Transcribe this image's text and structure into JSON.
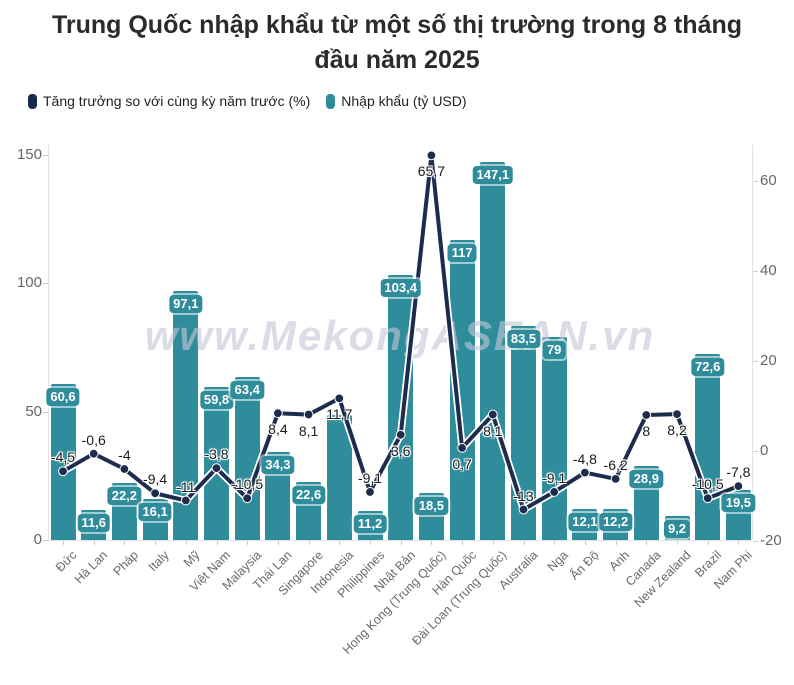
{
  "title": "Trung Quốc nhập khẩu từ một số thị trường trong 8 tháng đầu năm 2025",
  "legend": [
    {
      "label": "Tăng trưởng so với cùng kỳ năm trước (%)",
      "color": "#16294e"
    },
    {
      "label": "Nhập khẩu (tỷ USD)",
      "color": "#2f8d9b"
    }
  ],
  "watermark": "www.MekongASEAN.vn",
  "colors": {
    "bar_teal": "#2f8d9b",
    "line_navy": "#1d2b4d",
    "axis_line": "#e2e2e2",
    "tick": "#cccccc",
    "axis_text": "#666666",
    "title_text": "#2b2b2b"
  },
  "chart_data": {
    "type": "bar",
    "subtype": "combo-bar-line-dual-axis",
    "title": "Trung Quốc nhập khẩu từ một số thị trường trong 8 tháng đầu năm 2025",
    "grid": false,
    "legend_position": "top-left",
    "categories": [
      "Đức",
      "Hà Lan",
      "Pháp",
      "Italy",
      "Mỹ",
      "Việt Nam",
      "Malaysia",
      "Thái Lan",
      "Singapore",
      "Indonesia",
      "Philippines",
      "Nhật Bản",
      "Hong Kong (Trung Quốc)",
      "Hàn Quốc",
      "Đài Loan (Trung Quốc)",
      "Australia",
      "Nga",
      "Ấn Độ",
      "Anh",
      "Canada",
      "New Zealand",
      "Brazil",
      "Nam Phi"
    ],
    "series": [
      {
        "name": "Nhập khẩu (tỷ USD)",
        "type": "bar",
        "axis": "left",
        "values": [
          60.6,
          11.6,
          22.2,
          16.1,
          97.1,
          59.8,
          63.4,
          34.3,
          22.6,
          48.7,
          11.2,
          103.4,
          18.5,
          117,
          147.1,
          83.5,
          79,
          12.1,
          12.2,
          28.9,
          9.2,
          72.6,
          19.5
        ],
        "labels": [
          "60,6",
          "11,6",
          "22,2",
          "16,1",
          "97,1",
          "59,8",
          "63,4",
          "34,3",
          "22,6",
          null,
          "11,2",
          "103,4",
          "18,5",
          "117",
          "147,1",
          "83,5",
          "79",
          "12,1",
          "12,2",
          "28,9",
          "9,2",
          "72,6",
          "19,5"
        ]
      },
      {
        "name": "Tăng trưởng so với cùng kỳ năm trước (%)",
        "type": "line",
        "axis": "right",
        "values": [
          -4.5,
          -0.6,
          -4,
          -9.4,
          -11,
          -3.8,
          -10.5,
          8.4,
          8.1,
          11.7,
          -9.1,
          3.6,
          65.7,
          0.7,
          8.1,
          -13,
          -9.1,
          -4.8,
          -6.2,
          8,
          8.2,
          -10.5,
          -7.8
        ],
        "labels": [
          "-4,5",
          "-0,6",
          "-4",
          "-9,4",
          "-11",
          "-3,8",
          "-10,5",
          "8,4",
          "8,1",
          "11,7",
          "-9,1",
          "3,6",
          "65,7",
          "0,7",
          "8,1",
          "-13",
          "-9,1",
          "-4,8",
          "-6,2",
          "8",
          "8,2",
          "-10,5",
          "-7,8"
        ]
      }
    ],
    "left_axis": {
      "ticks": [
        0,
        50,
        100,
        150
      ],
      "tick_labels": [
        "0",
        "50",
        "100",
        "150"
      ]
    },
    "right_axis": {
      "ticks": [
        -20,
        0,
        20,
        40,
        60
      ],
      "tick_labels": [
        "-20",
        "0",
        "20",
        "40",
        "60"
      ]
    }
  }
}
